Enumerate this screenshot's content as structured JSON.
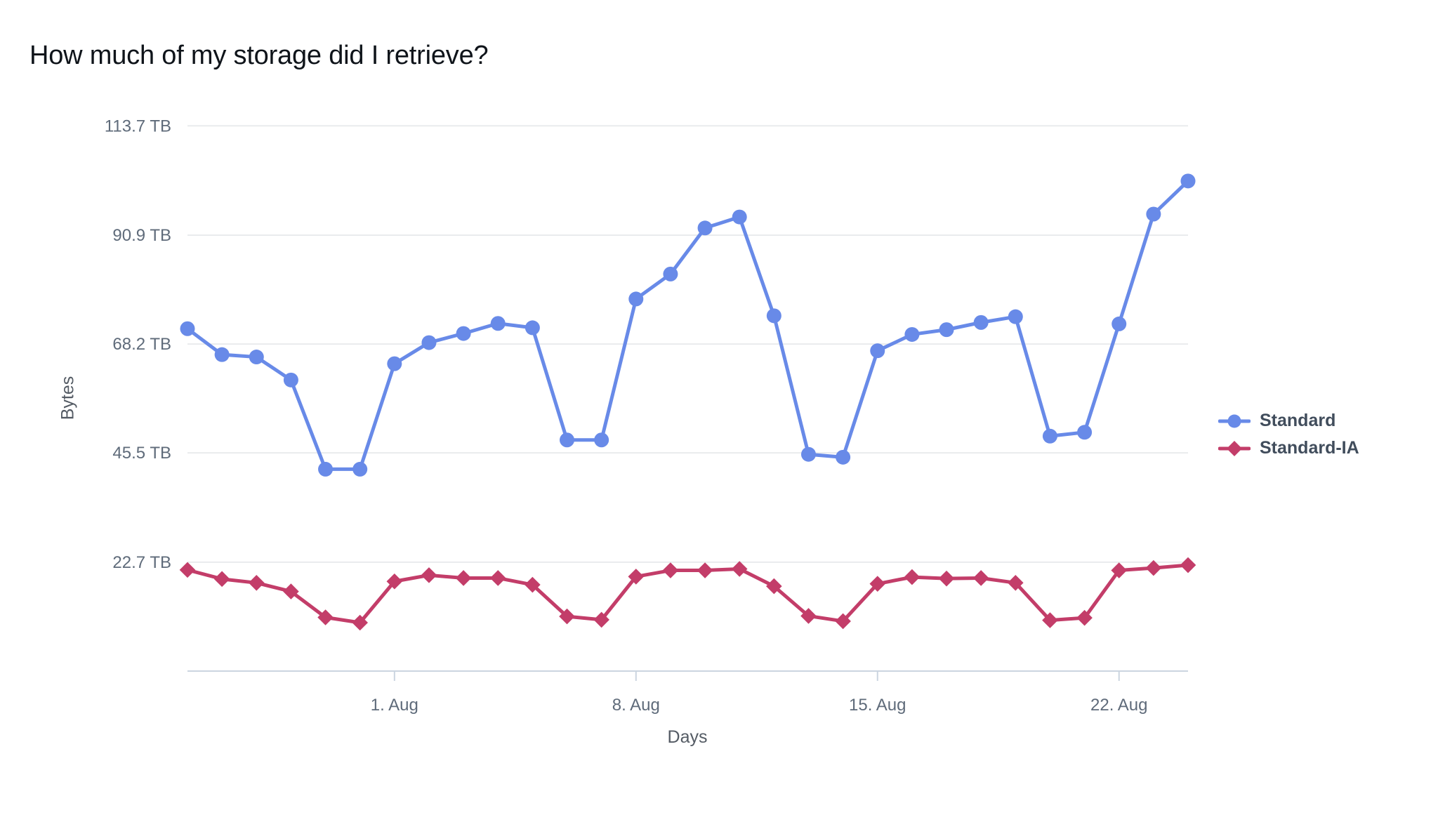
{
  "page": {
    "background_color": "#ffffff"
  },
  "colors": {
    "title_text": "#0f141a",
    "tick_label_text": "#5f6b7a",
    "axis_title_text": "#545b64",
    "legend_text": "#414d5c",
    "gridline": "#e9ebed",
    "axis_line": "#cbd5e0",
    "series_standard": "#688AE8",
    "series_standard_ia": "#C33D69"
  },
  "chart_data": {
    "type": "line",
    "title": "How much of my storage did I retrieve?",
    "xlabel": "Days",
    "ylabel": "Bytes",
    "ylim": [
      0,
      113.7
    ],
    "grid": "horizontal-only",
    "legend_position": "right",
    "n_points": 30,
    "y_ticks": [
      {
        "value": 22.7,
        "label": "22.7 TB"
      },
      {
        "value": 45.5,
        "label": "45.5 TB"
      },
      {
        "value": 68.2,
        "label": "68.2 TB"
      },
      {
        "value": 90.9,
        "label": "90.9 TB"
      },
      {
        "value": 113.7,
        "label": "113.7 TB"
      }
    ],
    "x_ticks": [
      {
        "index": 6,
        "label": "1. Aug"
      },
      {
        "index": 13,
        "label": "8. Aug"
      },
      {
        "index": 20,
        "label": "15. Aug"
      },
      {
        "index": 27,
        "label": "22. Aug"
      }
    ],
    "series": [
      {
        "name": "Standard",
        "marker": "circle",
        "color": "#688AE8",
        "unit": "TB",
        "values": [
          71.4,
          66.0,
          65.5,
          60.7,
          42.1,
          42.1,
          64.1,
          68.5,
          70.4,
          72.5,
          71.6,
          48.2,
          48.2,
          77.6,
          82.8,
          92.4,
          94.7,
          74.1,
          45.2,
          44.6,
          66.8,
          70.2,
          71.2,
          72.7,
          73.9,
          49.0,
          49.8,
          72.4,
          95.3,
          102.2
        ]
      },
      {
        "name": "Standard-IA",
        "marker": "diamond",
        "color": "#C33D69",
        "unit": "TB",
        "values": [
          21.1,
          19.2,
          18.4,
          16.6,
          11.2,
          10.1,
          18.7,
          20.0,
          19.4,
          19.4,
          18.0,
          11.4,
          10.7,
          19.7,
          21.0,
          21.0,
          21.3,
          17.7,
          11.5,
          10.4,
          18.2,
          19.6,
          19.3,
          19.4,
          18.4,
          10.6,
          11.1,
          21.0,
          21.5,
          22.1
        ]
      }
    ]
  }
}
